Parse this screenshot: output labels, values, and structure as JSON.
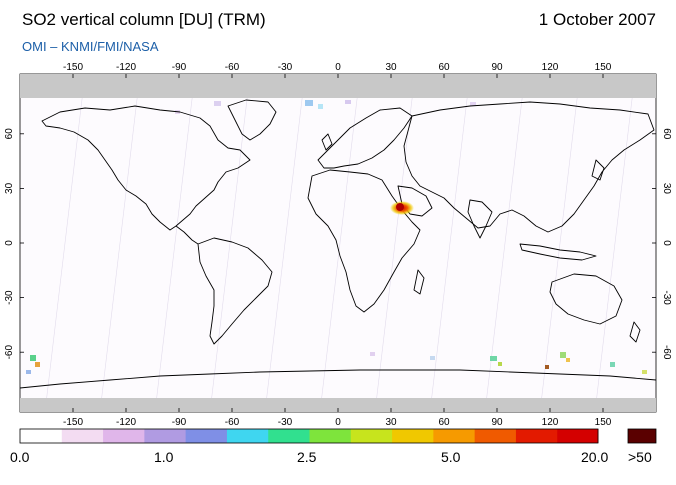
{
  "header": {
    "title": "SO2 vertical column [DU] (TRM)",
    "date": "1 October 2007",
    "credit": "OMI  –  KNMI/FMI/NASA"
  },
  "map": {
    "longitude_ticks": [
      "-150",
      "-120",
      "-90",
      "-60",
      "-30",
      "0",
      "30",
      "60",
      "90",
      "120",
      "150"
    ],
    "latitude_ticks": [
      "60",
      "30",
      "0",
      "-30",
      "-60"
    ],
    "hotspot": {
      "label": "SO2 plume near Red Sea",
      "lon": 40,
      "lat": 14
    }
  },
  "colorbar": {
    "labels": [
      "0.0",
      "1.0",
      "2.5",
      "5.0",
      "20.0"
    ],
    "overflow_label": ">50",
    "colors": [
      "#ffffff",
      "#f3dcf2",
      "#e0b6ea",
      "#b09be2",
      "#7f8fe6",
      "#3fd6f0",
      "#31e08f",
      "#7ee43c",
      "#c7e41d",
      "#f0c800",
      "#f69a00",
      "#f05a00",
      "#e31a00",
      "#d40000"
    ],
    "overflow_color": "#5a0000"
  },
  "colors": {
    "land_outline": "#000000",
    "polar_nodata": "#c8c8c8",
    "credit": "#1c5fa8"
  }
}
